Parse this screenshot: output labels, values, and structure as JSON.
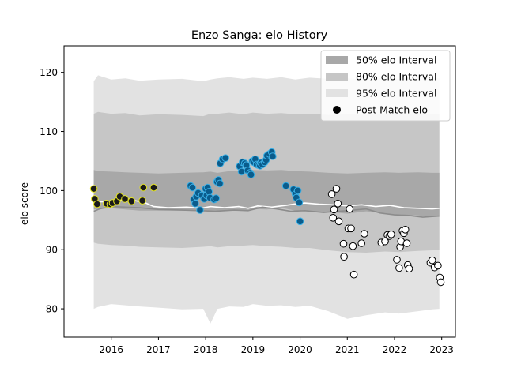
{
  "chart_data": {
    "type": "scatter",
    "title": "Enzo Sanga: elo History",
    "xlabel": "",
    "ylabel": "elo score",
    "xlim": [
      2015.0,
      2023.29
    ],
    "ylim": [
      75.2,
      124.5
    ],
    "xticks": [
      2016,
      2017,
      2018,
      2019,
      2020,
      2021,
      2022,
      2023
    ],
    "yticks": [
      80,
      90,
      100,
      110,
      120
    ],
    "grid": false,
    "legend_position": "top-right",
    "legend": [
      {
        "label": "50% elo Interval",
        "kind": "patch",
        "color": "#a8a8a8"
      },
      {
        "label": "80% elo Interval",
        "kind": "patch",
        "color": "#c6c6c6"
      },
      {
        "label": "95% elo Interval",
        "kind": "patch",
        "color": "#e2e2e2"
      },
      {
        "label": "Post Match elo",
        "kind": "marker",
        "color": "#000000"
      }
    ],
    "bands": {
      "x": [
        2015.63,
        2015.72,
        2016.0,
        2016.3,
        2016.6,
        2017.0,
        2017.5,
        2017.95,
        2018.1,
        2018.25,
        2018.5,
        2018.8,
        2019.0,
        2019.3,
        2019.6,
        2019.9,
        2020.2,
        2020.6,
        2021.0,
        2021.4,
        2021.8,
        2022.1,
        2022.5,
        2022.8,
        2022.95
      ],
      "p95_upper": [
        118.5,
        119.5,
        118.8,
        119.0,
        118.6,
        118.8,
        118.9,
        118.5,
        118.8,
        119.0,
        119.2,
        118.9,
        119.1,
        118.9,
        119.2,
        118.8,
        119.1,
        118.9,
        119.0,
        118.8,
        119.1,
        118.9,
        119.2,
        119.0,
        119.0
      ],
      "p95_lower": [
        80.0,
        80.3,
        80.8,
        80.6,
        80.4,
        80.2,
        79.9,
        80.0,
        77.5,
        80.0,
        80.4,
        80.3,
        80.8,
        80.5,
        80.6,
        80.3,
        80.5,
        79.6,
        78.3,
        78.9,
        79.4,
        79.2,
        79.6,
        79.9,
        80.0
      ],
      "p80_upper": [
        113.0,
        113.3,
        113.0,
        113.1,
        112.7,
        112.9,
        112.8,
        112.6,
        113.0,
        113.0,
        113.2,
        112.9,
        113.2,
        113.0,
        113.1,
        112.9,
        113.0,
        112.8,
        112.9,
        112.8,
        113.0,
        112.9,
        113.1,
        112.9,
        113.0
      ],
      "p80_lower": [
        91.2,
        91.0,
        90.8,
        90.7,
        90.5,
        90.4,
        90.3,
        90.5,
        90.6,
        90.4,
        90.6,
        90.7,
        90.8,
        90.6,
        90.5,
        90.3,
        90.3,
        89.9,
        89.6,
        89.5,
        89.7,
        89.6,
        89.8,
        89.9,
        90.0
      ],
      "p50_upper": [
        103.5,
        103.3,
        103.2,
        103.1,
        103.0,
        102.9,
        103.0,
        103.1,
        103.2,
        103.0,
        103.3,
        103.2,
        103.5,
        103.4,
        103.5,
        103.3,
        103.2,
        103.0,
        102.9,
        103.0,
        103.1,
        103.0,
        103.1,
        103.0,
        103.0
      ],
      "p50_lower": [
        96.8,
        96.9,
        97.0,
        96.8,
        96.6,
        96.6,
        96.6,
        96.5,
        96.6,
        96.5,
        96.7,
        96.6,
        96.9,
        96.8,
        97.1,
        96.6,
        96.5,
        96.4,
        96.1,
        96.5,
        96.2,
        95.9,
        95.8,
        95.6,
        95.8
      ]
    },
    "lines": [
      {
        "color": "#ffffff",
        "x": [
          2015.63,
          2015.75,
          2016.0,
          2016.3,
          2016.5,
          2016.7,
          2016.9,
          2017.2,
          2017.6,
          2017.9,
          2018.1,
          2018.4,
          2018.7,
          2018.9,
          2019.1,
          2019.4,
          2019.7,
          2019.95,
          2020.1,
          2020.4,
          2020.7,
          2021.0,
          2021.3,
          2021.6,
          2021.9,
          2022.2,
          2022.5,
          2022.8,
          2022.95
        ],
        "y": [
          97.8,
          98.1,
          98.2,
          98.5,
          98.3,
          98.0,
          97.3,
          97.1,
          97.2,
          97.0,
          97.3,
          97.1,
          97.3,
          97.0,
          97.4,
          97.2,
          97.5,
          97.8,
          97.9,
          97.7,
          97.6,
          97.4,
          97.6,
          97.3,
          97.5,
          97.1,
          97.0,
          96.9,
          97.0
        ]
      },
      {
        "color": "#8c8c8c",
        "x": [
          2015.63,
          2015.75,
          2016.0,
          2016.3,
          2016.6,
          2017.0,
          2017.5,
          2017.9,
          2018.2,
          2018.6,
          2018.9,
          2019.2,
          2019.5,
          2019.8,
          2020.1,
          2020.5,
          2020.8,
          2021.0,
          2021.4,
          2021.7,
          2022.0,
          2022.3,
          2022.6,
          2022.95
        ],
        "y": [
          96.5,
          96.9,
          97.3,
          97.2,
          97.1,
          96.8,
          96.7,
          96.6,
          96.5,
          96.7,
          96.6,
          97.2,
          96.9,
          96.5,
          96.6,
          96.3,
          96.5,
          96.6,
          96.9,
          96.2,
          95.9,
          95.8,
          95.5,
          95.7
        ]
      }
    ],
    "series": [
      {
        "face": "#1a1a1a",
        "edge": "#e5e51e",
        "points": [
          [
            2015.63,
            100.3
          ],
          [
            2015.65,
            98.6
          ],
          [
            2015.7,
            97.7
          ],
          [
            2015.9,
            97.8
          ],
          [
            2015.98,
            97.7
          ],
          [
            2016.03,
            97.9
          ],
          [
            2016.12,
            98.2
          ],
          [
            2016.18,
            99.0
          ],
          [
            2016.29,
            98.6
          ],
          [
            2016.43,
            98.2
          ],
          [
            2016.66,
            98.3
          ],
          [
            2016.68,
            100.5
          ],
          [
            2016.9,
            100.5
          ]
        ]
      },
      {
        "face": "#0a5c8c",
        "edge": "#3bb0e6",
        "points": [
          [
            2017.68,
            100.8
          ],
          [
            2017.72,
            100.5
          ],
          [
            2017.75,
            98.5
          ],
          [
            2017.78,
            97.8
          ],
          [
            2017.8,
            99.0
          ],
          [
            2017.84,
            99.6
          ],
          [
            2017.88,
            96.7
          ],
          [
            2017.92,
            99.2
          ],
          [
            2017.97,
            98.6
          ],
          [
            2018.0,
            100.3
          ],
          [
            2018.02,
            99.2
          ],
          [
            2018.04,
            100.5
          ],
          [
            2018.07,
            99.8
          ],
          [
            2018.09,
            98.8
          ],
          [
            2018.18,
            98.5
          ],
          [
            2018.22,
            98.7
          ],
          [
            2018.24,
            101.5
          ],
          [
            2018.27,
            101.8
          ],
          [
            2018.3,
            101.2
          ],
          [
            2018.31,
            104.6
          ],
          [
            2018.36,
            105.3
          ],
          [
            2018.42,
            105.5
          ],
          [
            2018.72,
            104.1
          ],
          [
            2018.76,
            103.2
          ],
          [
            2018.78,
            104.8
          ],
          [
            2018.83,
            104.6
          ],
          [
            2018.86,
            104.3
          ],
          [
            2018.89,
            103.4
          ],
          [
            2018.94,
            103.0
          ],
          [
            2018.96,
            102.7
          ],
          [
            2018.99,
            105.0
          ],
          [
            2019.02,
            104.8
          ],
          [
            2019.05,
            105.3
          ],
          [
            2019.08,
            104.4
          ],
          [
            2019.12,
            104.3
          ],
          [
            2019.15,
            104.2
          ],
          [
            2019.17,
            104.7
          ],
          [
            2019.2,
            104.4
          ],
          [
            2019.25,
            104.8
          ],
          [
            2019.28,
            105.2
          ],
          [
            2019.3,
            105.9
          ],
          [
            2019.35,
            106.2
          ],
          [
            2019.4,
            106.5
          ],
          [
            2019.42,
            105.8
          ],
          [
            2019.7,
            100.8
          ],
          [
            2019.86,
            100.2
          ],
          [
            2019.9,
            99.4
          ],
          [
            2019.92,
            98.8
          ],
          [
            2019.95,
            100.0
          ],
          [
            2019.98,
            98.0
          ],
          [
            2020.0,
            94.8
          ]
        ]
      },
      {
        "face": "#ffffff",
        "edge": "#000000",
        "points": [
          [
            2020.67,
            99.4
          ],
          [
            2020.7,
            95.4
          ],
          [
            2020.72,
            96.8
          ],
          [
            2020.77,
            100.3
          ],
          [
            2020.8,
            97.8
          ],
          [
            2020.82,
            94.8
          ],
          [
            2020.92,
            91.0
          ],
          [
            2020.93,
            88.8
          ],
          [
            2021.02,
            93.6
          ],
          [
            2021.05,
            96.9
          ],
          [
            2021.08,
            93.6
          ],
          [
            2021.12,
            90.6
          ],
          [
            2021.14,
            85.8
          ],
          [
            2021.3,
            91.1
          ],
          [
            2021.36,
            92.7
          ],
          [
            2021.72,
            91.2
          ],
          [
            2021.8,
            91.4
          ],
          [
            2021.85,
            92.5
          ],
          [
            2021.89,
            92.3
          ],
          [
            2021.93,
            92.6
          ],
          [
            2022.05,
            88.3
          ],
          [
            2022.1,
            86.9
          ],
          [
            2022.12,
            90.5
          ],
          [
            2022.14,
            91.4
          ],
          [
            2022.17,
            93.2
          ],
          [
            2022.2,
            92.8
          ],
          [
            2022.23,
            93.4
          ],
          [
            2022.26,
            91.1
          ],
          [
            2022.28,
            87.4
          ],
          [
            2022.31,
            86.8
          ],
          [
            2022.76,
            87.8
          ],
          [
            2022.8,
            88.2
          ],
          [
            2022.85,
            87.0
          ],
          [
            2022.92,
            87.3
          ],
          [
            2022.96,
            85.3
          ],
          [
            2022.98,
            84.5
          ]
        ]
      }
    ]
  }
}
